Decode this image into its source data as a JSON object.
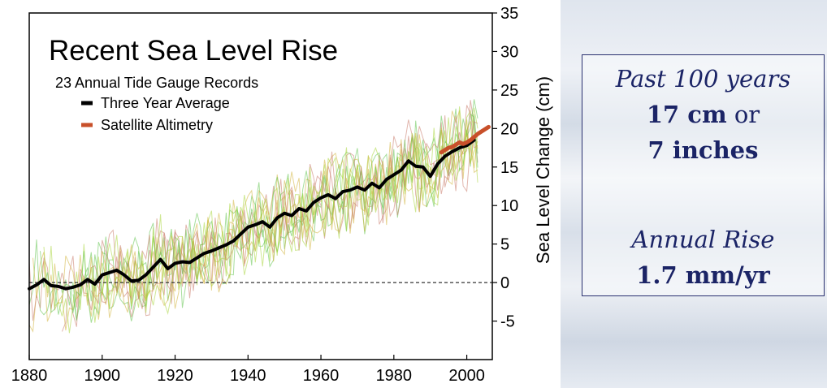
{
  "chart_data": {
    "type": "line",
    "title": "Recent Sea Level Rise",
    "subtitle": "23 Annual Tide Gauge Records",
    "ylabel": "Sea Level Change (cm)",
    "xlabel": "",
    "xlim": [
      1880,
      2007
    ],
    "ylim": [
      -10,
      35
    ],
    "x_ticks": [
      1880,
      1900,
      1920,
      1940,
      1960,
      1980,
      2000
    ],
    "y_ticks": [
      -5,
      0,
      5,
      10,
      15,
      20,
      25,
      30,
      35
    ],
    "y_axis_side": "right",
    "zero_reference_line": true,
    "grid": false,
    "legend_position": "top-left",
    "legend": [
      {
        "label": "Three Year Average",
        "color": "#000000"
      },
      {
        "label": "Satellite Altimetry",
        "color": "#c8502a"
      }
    ],
    "series": [
      {
        "name": "Three Year Average",
        "color": "#000000",
        "x": [
          1880,
          1882,
          1884,
          1886,
          1888,
          1890,
          1892,
          1894,
          1896,
          1898,
          1900,
          1902,
          1904,
          1906,
          1908,
          1910,
          1912,
          1914,
          1916,
          1918,
          1920,
          1922,
          1924,
          1926,
          1928,
          1930,
          1932,
          1934,
          1936,
          1938,
          1940,
          1942,
          1944,
          1946,
          1948,
          1950,
          1952,
          1954,
          1956,
          1958,
          1960,
          1962,
          1964,
          1966,
          1968,
          1970,
          1972,
          1974,
          1976,
          1978,
          1980,
          1982,
          1984,
          1986,
          1988,
          1990,
          1992,
          1994,
          1996,
          1998,
          2000,
          2002
        ],
        "y": [
          -0.8,
          -0.3,
          0.4,
          -0.4,
          -0.5,
          -0.8,
          -0.6,
          -0.3,
          0.4,
          -0.2,
          1.0,
          1.3,
          1.6,
          1.0,
          0.2,
          0.3,
          1.0,
          2.0,
          3.0,
          1.8,
          2.5,
          2.7,
          2.6,
          3.2,
          3.8,
          4.1,
          4.5,
          4.9,
          5.4,
          6.3,
          7.2,
          7.5,
          7.9,
          7.2,
          8.4,
          9.0,
          8.7,
          9.6,
          9.3,
          10.4,
          11.0,
          11.4,
          10.9,
          11.8,
          12.0,
          12.4,
          12.0,
          12.9,
          12.3,
          13.4,
          14.0,
          14.6,
          15.8,
          15.1,
          15.0,
          13.8,
          15.4,
          16.4,
          17.0,
          17.5,
          17.8,
          18.5
        ]
      },
      {
        "name": "Satellite Altimetry",
        "color": "#c8502a",
        "x": [
          1993,
          1994,
          1995,
          1996,
          1997,
          1998,
          1999,
          2000,
          2001,
          2002,
          2003,
          2004,
          2005,
          2006
        ],
        "y": [
          16.9,
          17.2,
          17.5,
          17.6,
          17.9,
          18.2,
          18.0,
          18.2,
          18.5,
          18.9,
          19.3,
          19.6,
          19.9,
          20.2
        ]
      }
    ]
  },
  "info_box": {
    "line1": "Past 100 years",
    "line2_value": "17 cm",
    "line2_joiner": " or",
    "line3": "7 inches",
    "line4": "Annual Rise",
    "line5": "1.7 mm/yr"
  },
  "colors": {
    "info_text": "#1b2466",
    "tide_gauge_noise_colors": [
      "#5fc24a",
      "#d2b33a",
      "#c97a6a",
      "#a8d63a"
    ]
  }
}
